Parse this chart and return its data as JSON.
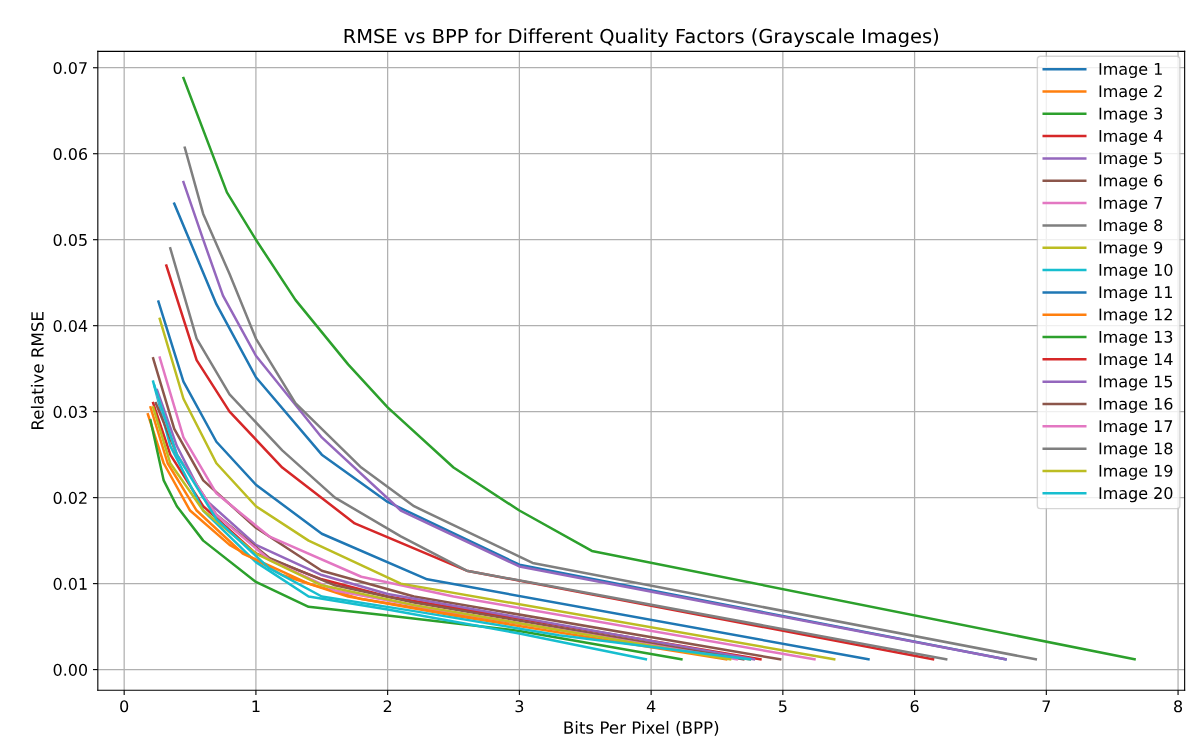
{
  "chart_data": {
    "type": "line",
    "title": "RMSE vs BPP for Different Quality Factors (Grayscale Images)",
    "xlabel": "Bits Per Pixel (BPP)",
    "ylabel": "Relative RMSE",
    "xlim": [
      -0.2,
      8.05
    ],
    "ylim": [
      -0.0024,
      0.0719
    ],
    "xticks": [
      0,
      1,
      2,
      3,
      4,
      5,
      6,
      7,
      8
    ],
    "yticks": [
      {
        "value": 0.0,
        "label": "0.00"
      },
      {
        "value": 0.01,
        "label": "0.01"
      },
      {
        "value": 0.02,
        "label": "0.02"
      },
      {
        "value": 0.03,
        "label": "0.03"
      },
      {
        "value": 0.04,
        "label": "0.04"
      },
      {
        "value": 0.05,
        "label": "0.05"
      },
      {
        "value": 0.06,
        "label": "0.06"
      },
      {
        "value": 0.07,
        "label": "0.07"
      }
    ],
    "grid": true,
    "legend": "top right",
    "line_style": "solid",
    "series": [
      {
        "name": "Image 1",
        "color": "#1f77b4",
        "x": [
          0.38,
          0.7,
          1.0,
          1.5,
          2.0,
          3.0,
          6.69
        ],
        "values": [
          0.0542,
          0.0425,
          0.034,
          0.025,
          0.0195,
          0.0122,
          0.0012
        ]
      },
      {
        "name": "Image 2",
        "color": "#ff7f0e",
        "x": [
          0.18,
          0.3,
          0.5,
          0.8,
          1.2,
          1.7,
          2.5,
          4.57
        ],
        "values": [
          0.0297,
          0.024,
          0.0185,
          0.0145,
          0.011,
          0.0085,
          0.0063,
          0.0012
        ]
      },
      {
        "name": "Image 3",
        "color": "#2ca02c",
        "x": [
          0.2,
          0.3,
          0.4,
          0.6,
          1.0,
          1.4,
          2.0,
          3.0,
          4.23
        ],
        "values": [
          0.029,
          0.022,
          0.019,
          0.015,
          0.0102,
          0.0073,
          0.0063,
          0.0045,
          0.0012
        ]
      },
      {
        "name": "Image 4",
        "color": "#d62728",
        "x": [
          0.22,
          0.35,
          0.6,
          1.0,
          1.5,
          2.0,
          4.83
        ],
        "values": [
          0.031,
          0.025,
          0.019,
          0.0135,
          0.0105,
          0.0085,
          0.0012
        ]
      },
      {
        "name": "Image 5",
        "color": "#9467bd",
        "x": [
          0.45,
          0.6,
          0.75,
          1.0,
          1.5,
          2.1,
          3.0,
          6.69
        ],
        "values": [
          0.0567,
          0.05,
          0.0435,
          0.0365,
          0.027,
          0.0185,
          0.012,
          0.0012
        ]
      },
      {
        "name": "Image 6",
        "color": "#8c564b",
        "x": [
          0.22,
          0.38,
          0.6,
          1.0,
          1.5,
          2.2,
          4.98
        ],
        "values": [
          0.0362,
          0.028,
          0.022,
          0.0165,
          0.0115,
          0.0085,
          0.0012
        ]
      },
      {
        "name": "Image 7",
        "color": "#e377c2",
        "x": [
          0.27,
          0.45,
          0.7,
          1.1,
          1.8,
          2.5,
          5.24
        ],
        "values": [
          0.0363,
          0.027,
          0.0205,
          0.0155,
          0.0108,
          0.0085,
          0.0012
        ]
      },
      {
        "name": "Image 8",
        "color": "#7f7f7f",
        "x": [
          0.46,
          0.6,
          0.8,
          1.0,
          1.3,
          1.8,
          2.2,
          3.1,
          6.92
        ],
        "values": [
          0.0607,
          0.053,
          0.046,
          0.0385,
          0.031,
          0.0235,
          0.019,
          0.0124,
          0.0012
        ]
      },
      {
        "name": "Image 9",
        "color": "#bcbd22",
        "x": [
          0.27,
          0.45,
          0.7,
          1.0,
          1.4,
          2.1,
          5.39
        ],
        "values": [
          0.0408,
          0.0315,
          0.024,
          0.019,
          0.015,
          0.01,
          0.0012
        ]
      },
      {
        "name": "Image 10",
        "color": "#17becf",
        "x": [
          0.22,
          0.35,
          0.6,
          1.0,
          1.4,
          2.0,
          3.0,
          3.96
        ],
        "values": [
          0.0335,
          0.026,
          0.0185,
          0.0125,
          0.0085,
          0.007,
          0.0042,
          0.0012
        ]
      },
      {
        "name": "Image 11",
        "color": "#1f77b4",
        "x": [
          0.26,
          0.45,
          0.7,
          1.0,
          1.5,
          2.3,
          5.65
        ],
        "values": [
          0.0428,
          0.0335,
          0.0265,
          0.0215,
          0.0158,
          0.0105,
          0.0012
        ]
      },
      {
        "name": "Image 12",
        "color": "#ff7f0e",
        "x": [
          0.2,
          0.33,
          0.55,
          0.9,
          1.4,
          1.8,
          2.5,
          4.75
        ],
        "values": [
          0.0305,
          0.024,
          0.0185,
          0.0135,
          0.01,
          0.0082,
          0.0065,
          0.0012
        ]
      },
      {
        "name": "Image 13",
        "color": "#2ca02c",
        "x": [
          0.45,
          0.78,
          1.0,
          1.3,
          1.7,
          2.0,
          2.5,
          3.0,
          3.55,
          7.67
        ],
        "values": [
          0.0688,
          0.0555,
          0.05,
          0.043,
          0.0355,
          0.0305,
          0.0235,
          0.0185,
          0.0138,
          0.0012
        ]
      },
      {
        "name": "Image 14",
        "color": "#d62728",
        "x": [
          0.32,
          0.55,
          0.8,
          1.2,
          1.75,
          2.6,
          6.14
        ],
        "values": [
          0.047,
          0.036,
          0.03,
          0.0235,
          0.017,
          0.0115,
          0.0012
        ]
      },
      {
        "name": "Image 15",
        "color": "#9467bd",
        "x": [
          0.25,
          0.4,
          0.6,
          1.0,
          1.5,
          2.0,
          4.78
        ],
        "values": [
          0.0325,
          0.026,
          0.02,
          0.0145,
          0.011,
          0.0088,
          0.0012
        ]
      },
      {
        "name": "Image 16",
        "color": "#8c564b",
        "x": [
          0.24,
          0.4,
          0.7,
          1.1,
          1.6,
          2.2,
          4.7
        ],
        "values": [
          0.031,
          0.025,
          0.018,
          0.013,
          0.0098,
          0.0078,
          0.0012
        ]
      },
      {
        "name": "Image 17",
        "color": "#e377c2",
        "x": [
          0.25,
          0.4,
          0.7,
          1.1,
          1.6,
          2.3,
          4.65
        ],
        "values": [
          0.032,
          0.025,
          0.018,
          0.0128,
          0.0092,
          0.0072,
          0.0012
        ]
      },
      {
        "name": "Image 18",
        "color": "#7f7f7f",
        "x": [
          0.35,
          0.55,
          0.8,
          1.2,
          1.6,
          2.1,
          2.6,
          6.24
        ],
        "values": [
          0.049,
          0.0385,
          0.032,
          0.0255,
          0.02,
          0.0155,
          0.0115,
          0.0012
        ]
      },
      {
        "name": "Image 19",
        "color": "#bcbd22",
        "x": [
          0.22,
          0.35,
          0.6,
          1.0,
          1.5,
          2.2,
          4.6
        ],
        "values": [
          0.0305,
          0.024,
          0.0185,
          0.0135,
          0.0098,
          0.0075,
          0.0012
        ]
      },
      {
        "name": "Image 20",
        "color": "#17becf",
        "x": [
          0.23,
          0.4,
          0.7,
          1.1,
          1.5,
          2.2,
          3.3,
          4.75
        ],
        "values": [
          0.033,
          0.025,
          0.0175,
          0.0118,
          0.0085,
          0.0068,
          0.004,
          0.0012
        ]
      }
    ]
  }
}
